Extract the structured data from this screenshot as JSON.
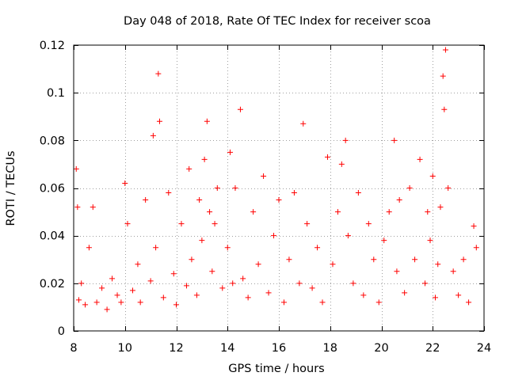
{
  "chart_data": {
    "type": "scatter",
    "title": "Day 048 of 2018, Rate Of TEC Index for receiver scoa",
    "xlabel": "GPS time / hours",
    "ylabel": "ROTI / TECUs",
    "xlim": [
      8,
      24
    ],
    "ylim": [
      0,
      0.12
    ],
    "xticks": [
      8,
      10,
      12,
      14,
      16,
      18,
      20,
      22,
      24
    ],
    "yticks": [
      0,
      0.02,
      0.04,
      0.06,
      0.08,
      0.1,
      0.12
    ],
    "xtick_labels": [
      "8",
      "10",
      "12",
      "14",
      "16",
      "18",
      "20",
      "22",
      "24"
    ],
    "ytick_labels": [
      "0",
      "0.02",
      "0.04",
      "0.06",
      "0.08",
      "0.1",
      "0.12"
    ],
    "grid": true,
    "marker": "+",
    "series": [
      {
        "name": "scoa",
        "color": "#ff0000",
        "x": [
          8.1,
          8.15,
          8.2,
          8.3,
          8.45,
          8.6,
          8.75,
          8.9,
          9.1,
          9.3,
          9.5,
          9.7,
          9.85,
          10.0,
          10.1,
          10.3,
          10.5,
          10.6,
          10.8,
          11.0,
          11.1,
          11.2,
          11.3,
          11.35,
          11.5,
          11.7,
          11.9,
          12.0,
          12.2,
          12.4,
          12.5,
          12.6,
          12.8,
          12.9,
          13.0,
          13.1,
          13.2,
          13.3,
          13.4,
          13.5,
          13.6,
          13.8,
          14.0,
          14.1,
          14.2,
          14.3,
          14.5,
          14.6,
          14.8,
          15.0,
          15.2,
          15.4,
          15.6,
          15.8,
          16.0,
          16.2,
          16.4,
          16.6,
          16.8,
          16.95,
          17.1,
          17.3,
          17.5,
          17.7,
          17.9,
          18.1,
          18.3,
          18.45,
          18.6,
          18.7,
          18.9,
          19.1,
          19.3,
          19.5,
          19.7,
          19.9,
          20.1,
          20.3,
          20.5,
          20.6,
          20.7,
          20.9,
          21.1,
          21.3,
          21.5,
          21.7,
          21.8,
          21.9,
          22.0,
          22.1,
          22.2,
          22.3,
          22.4,
          22.45,
          22.5,
          22.6,
          22.8,
          23.0,
          23.2,
          23.4,
          23.6,
          23.7
        ],
        "y": [
          0.068,
          0.052,
          0.013,
          0.02,
          0.011,
          0.035,
          0.052,
          0.012,
          0.018,
          0.009,
          0.022,
          0.015,
          0.012,
          0.062,
          0.045,
          0.017,
          0.028,
          0.012,
          0.055,
          0.021,
          0.082,
          0.035,
          0.108,
          0.088,
          0.014,
          0.058,
          0.024,
          0.011,
          0.045,
          0.019,
          0.068,
          0.03,
          0.015,
          0.055,
          0.038,
          0.072,
          0.088,
          0.05,
          0.025,
          0.045,
          0.06,
          0.018,
          0.035,
          0.075,
          0.02,
          0.06,
          0.093,
          0.022,
          0.014,
          0.05,
          0.028,
          0.065,
          0.016,
          0.04,
          0.055,
          0.012,
          0.03,
          0.058,
          0.02,
          0.087,
          0.045,
          0.018,
          0.035,
          0.012,
          0.073,
          0.028,
          0.05,
          0.07,
          0.08,
          0.04,
          0.02,
          0.058,
          0.015,
          0.045,
          0.03,
          0.012,
          0.038,
          0.05,
          0.08,
          0.025,
          0.055,
          0.016,
          0.06,
          0.03,
          0.072,
          0.02,
          0.05,
          0.038,
          0.065,
          0.014,
          0.028,
          0.052,
          0.107,
          0.093,
          0.118,
          0.06,
          0.025,
          0.015,
          0.03,
          0.012,
          0.044,
          0.035
        ]
      }
    ]
  }
}
